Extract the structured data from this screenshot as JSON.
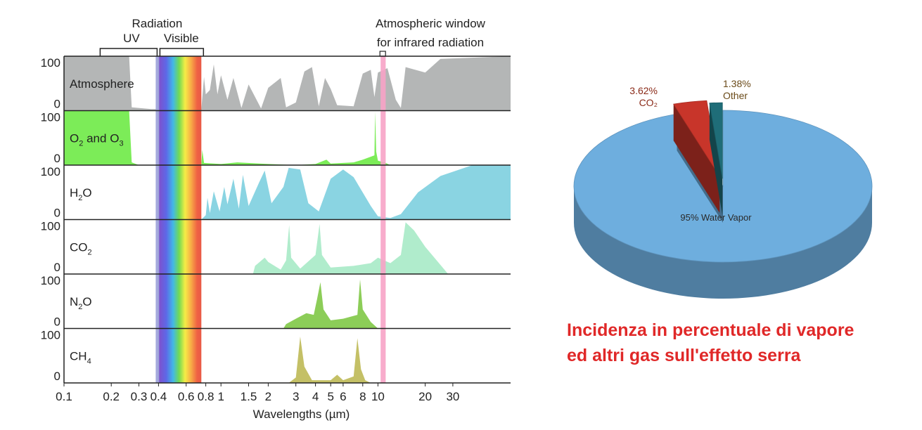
{
  "chart_data": [
    {
      "type": "area",
      "top_labels": {
        "radiation": "Radiation",
        "uv": "UV",
        "visible": "Visible",
        "window_line1": "Atmospheric window",
        "window_line2": "for infrared radiation"
      },
      "xlabel": "Wavelengths (µm)",
      "x_scale": "log",
      "xlim": [
        0.1,
        70
      ],
      "ylim": [
        0,
        100
      ],
      "y_tick_labels": [
        "100",
        "0"
      ],
      "x_ticks": [
        {
          "v": 0.1,
          "label": "0.1"
        },
        {
          "v": 0.2,
          "label": "0.2"
        },
        {
          "v": 0.3,
          "label": "0.3"
        },
        {
          "v": 0.4,
          "label": "0.4"
        },
        {
          "v": 0.6,
          "label": "0.6"
        },
        {
          "v": 0.8,
          "label": "0.8"
        },
        {
          "v": 1,
          "label": "1"
        },
        {
          "v": 1.5,
          "label": "1.5"
        },
        {
          "v": 2,
          "label": "2"
        },
        {
          "v": 3,
          "label": "3"
        },
        {
          "v": 4,
          "label": "4"
        },
        {
          "v": 5,
          "label": "5"
        },
        {
          "v": 6,
          "label": "6"
        },
        {
          "v": 8,
          "label": "8"
        },
        {
          "v": 10,
          "label": "10"
        },
        {
          "v": 20,
          "label": "20"
        },
        {
          "v": 30,
          "label": "30"
        }
      ],
      "bands": {
        "uv": [
          0.17,
          0.4
        ],
        "visible": [
          0.4,
          0.75
        ],
        "window": [
          10.4,
          11.2
        ]
      },
      "colors": {
        "window": "#f7a3c6",
        "grid": "#000000"
      },
      "panels": [
        {
          "label": "Atmosphere",
          "color": "#b4b6b6",
          "points": [
            [
              0.1,
              100
            ],
            [
              0.26,
              100
            ],
            [
              0.27,
              6
            ],
            [
              0.36,
              3
            ],
            [
              0.75,
              3
            ],
            [
              0.78,
              62
            ],
            [
              0.8,
              30
            ],
            [
              0.85,
              38
            ],
            [
              0.9,
              85
            ],
            [
              0.95,
              30
            ],
            [
              1.0,
              65
            ],
            [
              1.1,
              20
            ],
            [
              1.2,
              60
            ],
            [
              1.35,
              5
            ],
            [
              1.5,
              48
            ],
            [
              1.8,
              4
            ],
            [
              2.0,
              42
            ],
            [
              2.4,
              60
            ],
            [
              2.6,
              6
            ],
            [
              3.0,
              15
            ],
            [
              3.4,
              72
            ],
            [
              3.8,
              80
            ],
            [
              4.2,
              8
            ],
            [
              4.6,
              60
            ],
            [
              5.0,
              40
            ],
            [
              5.5,
              10
            ],
            [
              7.0,
              8
            ],
            [
              8.0,
              68
            ],
            [
              9.0,
              75
            ],
            [
              9.5,
              25
            ],
            [
              10.0,
              70
            ],
            [
              11.5,
              78
            ],
            [
              13,
              20
            ],
            [
              14,
              5
            ],
            [
              15,
              80
            ],
            [
              20,
              70
            ],
            [
              25,
              95
            ],
            [
              70,
              100
            ]
          ]
        },
        {
          "label": "O2 and O3",
          "color": "#7cec58",
          "points": [
            [
              0.1,
              100
            ],
            [
              0.26,
              100
            ],
            [
              0.27,
              5
            ],
            [
              0.3,
              0
            ],
            [
              0.75,
              0
            ],
            [
              0.76,
              28
            ],
            [
              0.78,
              4
            ],
            [
              1.0,
              2
            ],
            [
              1.27,
              5
            ],
            [
              2,
              2
            ],
            [
              3,
              0
            ],
            [
              4,
              2
            ],
            [
              4.7,
              10
            ],
            [
              5,
              3
            ],
            [
              7,
              5
            ],
            [
              8,
              10
            ],
            [
              9.5,
              18
            ],
            [
              9.6,
              98
            ],
            [
              9.75,
              25
            ],
            [
              10,
              8
            ],
            [
              11,
              5
            ],
            [
              12,
              0
            ],
            [
              70,
              0
            ]
          ]
        },
        {
          "label": "H2O",
          "color": "#8ad4e2",
          "points": [
            [
              0.1,
              0
            ],
            [
              0.75,
              0
            ],
            [
              0.8,
              8
            ],
            [
              0.82,
              40
            ],
            [
              0.85,
              12
            ],
            [
              0.9,
              52
            ],
            [
              0.98,
              15
            ],
            [
              1.05,
              60
            ],
            [
              1.1,
              28
            ],
            [
              1.2,
              75
            ],
            [
              1.3,
              20
            ],
            [
              1.38,
              82
            ],
            [
              1.5,
              25
            ],
            [
              1.75,
              68
            ],
            [
              1.9,
              90
            ],
            [
              2.1,
              30
            ],
            [
              2.5,
              60
            ],
            [
              2.7,
              95
            ],
            [
              3.2,
              92
            ],
            [
              3.6,
              30
            ],
            [
              4.2,
              15
            ],
            [
              5.0,
              75
            ],
            [
              6.0,
              92
            ],
            [
              7.0,
              78
            ],
            [
              9,
              25
            ],
            [
              10,
              6
            ],
            [
              12,
              3
            ],
            [
              14,
              10
            ],
            [
              18,
              50
            ],
            [
              25,
              80
            ],
            [
              40,
              100
            ],
            [
              70,
              100
            ]
          ]
        },
        {
          "label": "CO2",
          "color": "#b0eccc",
          "points": [
            [
              0.1,
              0
            ],
            [
              1.6,
              0
            ],
            [
              1.65,
              15
            ],
            [
              1.9,
              30
            ],
            [
              2.0,
              22
            ],
            [
              2.4,
              8
            ],
            [
              2.6,
              25
            ],
            [
              2.72,
              90
            ],
            [
              2.8,
              30
            ],
            [
              3.2,
              10
            ],
            [
              4.0,
              35
            ],
            [
              4.25,
              92
            ],
            [
              4.4,
              35
            ],
            [
              5,
              12
            ],
            [
              7,
              15
            ],
            [
              9,
              20
            ],
            [
              10,
              30
            ],
            [
              12,
              20
            ],
            [
              14,
              35
            ],
            [
              15,
              95
            ],
            [
              17,
              80
            ],
            [
              20,
              50
            ],
            [
              28,
              0
            ],
            [
              70,
              0
            ]
          ]
        },
        {
          "label": "N2O",
          "color": "#8ccd58",
          "points": [
            [
              0.1,
              0
            ],
            [
              2.5,
              0
            ],
            [
              2.6,
              8
            ],
            [
              3.0,
              18
            ],
            [
              3.5,
              28
            ],
            [
              3.9,
              25
            ],
            [
              4.1,
              55
            ],
            [
              4.3,
              85
            ],
            [
              4.5,
              35
            ],
            [
              5,
              15
            ],
            [
              6,
              18
            ],
            [
              7.4,
              25
            ],
            [
              7.7,
              90
            ],
            [
              8,
              35
            ],
            [
              9,
              12
            ],
            [
              10,
              0
            ],
            [
              70,
              0
            ]
          ]
        },
        {
          "label": "CH4",
          "color": "#c4c066",
          "points": [
            [
              0.1,
              0
            ],
            [
              2.7,
              0
            ],
            [
              3.0,
              10
            ],
            [
              3.2,
              85
            ],
            [
              3.4,
              30
            ],
            [
              3.8,
              5
            ],
            [
              5,
              5
            ],
            [
              5.5,
              15
            ],
            [
              6,
              5
            ],
            [
              7.0,
              12
            ],
            [
              7.4,
              82
            ],
            [
              7.8,
              25
            ],
            [
              8.3,
              5
            ],
            [
              9,
              0
            ],
            [
              70,
              0
            ]
          ]
        }
      ]
    },
    {
      "type": "pie",
      "slices": [
        {
          "label": "95% Water Vapor",
          "value": 95,
          "color": "#6eaede"
        },
        {
          "label": "CO2",
          "value": 3.62,
          "display": "3.62%",
          "name": "CO₂",
          "color": "#c8352a"
        },
        {
          "label": "Other",
          "value": 1.38,
          "display": "1.38%",
          "name": "Other",
          "color": "#1f6d78"
        }
      ]
    }
  ],
  "caption": {
    "line1": "Incidenza in percentuale di vapore",
    "line2": "ed altri gas sull'effetto serra"
  }
}
